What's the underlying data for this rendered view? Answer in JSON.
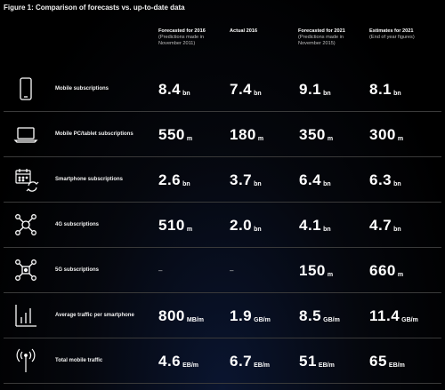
{
  "title": "Figure 1: Comparison of forecasts vs. up-to-date data",
  "headers": [
    {
      "main": "Forecasted for 2016",
      "sub": "(Predictions made in\nNovember 2011)"
    },
    {
      "main": "Actual 2016",
      "sub": ""
    },
    {
      "main": "Forecasted for 2021",
      "sub": "(Predictions made in\nNovember 2015)"
    },
    {
      "main": "Estimates for 2021",
      "sub": "(End of year figures)"
    }
  ],
  "rows": [
    {
      "icon": "mobile-phone-icon",
      "label": "Mobile subscriptions",
      "cells": [
        {
          "value": "8.4",
          "unit": "bn"
        },
        {
          "value": "7.4",
          "unit": "bn"
        },
        {
          "value": "9.1",
          "unit": "bn"
        },
        {
          "value": "8.1",
          "unit": "bn"
        }
      ]
    },
    {
      "icon": "laptop-icon",
      "label": "Mobile PC/tablet subscriptions",
      "cells": [
        {
          "value": "550",
          "unit": "m"
        },
        {
          "value": "180",
          "unit": "m"
        },
        {
          "value": "350",
          "unit": "m"
        },
        {
          "value": "300",
          "unit": "m"
        }
      ]
    },
    {
      "icon": "calendar-sync-icon",
      "label": "Smartphone subscriptions",
      "cells": [
        {
          "value": "2.6",
          "unit": "bn"
        },
        {
          "value": "3.7",
          "unit": "bn"
        },
        {
          "value": "6.4",
          "unit": "bn"
        },
        {
          "value": "6.3",
          "unit": "bn"
        }
      ]
    },
    {
      "icon": "network-4g-icon",
      "label": "4G subscriptions",
      "cells": [
        {
          "value": "510",
          "unit": "m"
        },
        {
          "value": "2.0",
          "unit": "bn"
        },
        {
          "value": "4.1",
          "unit": "bn"
        },
        {
          "value": "4.7",
          "unit": "bn"
        }
      ]
    },
    {
      "icon": "network-5g-icon",
      "label": "5G subscriptions",
      "cells": [
        {
          "value": "",
          "unit": "",
          "dash": "–"
        },
        {
          "value": "",
          "unit": "",
          "dash": "–"
        },
        {
          "value": "150",
          "unit": "m"
        },
        {
          "value": "660",
          "unit": "m"
        }
      ]
    },
    {
      "icon": "bar-chart-icon",
      "label": "Average traffic per smartphone",
      "cells": [
        {
          "value": "800",
          "unit": "MB/m"
        },
        {
          "value": "1.9",
          "unit": "GB/m"
        },
        {
          "value": "8.5",
          "unit": "GB/m"
        },
        {
          "value": "11.4",
          "unit": "GB/m"
        }
      ]
    },
    {
      "icon": "antenna-tower-icon",
      "label": "Total mobile traffic",
      "cells": [
        {
          "value": "4.6",
          "unit": "EB/m"
        },
        {
          "value": "6.7",
          "unit": "EB/m"
        },
        {
          "value": "51",
          "unit": "EB/m"
        },
        {
          "value": "65",
          "unit": "EB/m"
        }
      ]
    }
  ]
}
